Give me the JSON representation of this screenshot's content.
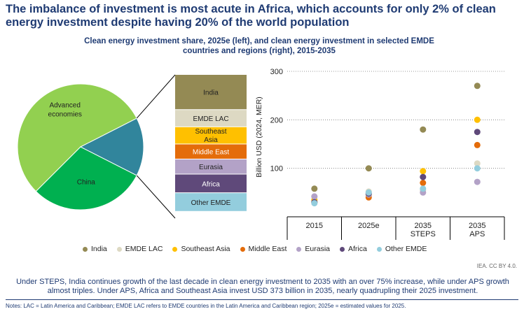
{
  "headline": "The imbalance of investment is most acute in Africa, which accounts for only 2% of clean energy investment despite having 20% of the world population",
  "subtitle": "Clean energy investment share, 2025e (left), and clean energy investment in selected EMDE countries and regions (right), 2015-2035",
  "credit": "IEA. CC BY 4.0.",
  "caption": "Under STEPS, India continues growth of the last decade in clean energy investment to 2035 with an over 75% increase, while under APS growth almost triples. Under APS, Africa and Southeast Asia invest USD 373 billion in 2035, nearly quadrupling their 2025 investment.",
  "notes": "Notes: LAC = Latin America and Caribbean; EMDE LAC refers to EMDE countries in the Latin America and Caribbean region; 2025e = estimated values for 2025.",
  "colors": {
    "advanced": "#92d050",
    "china": "#00b050",
    "emde": "#31859c",
    "India": "#948a54",
    "EMDE LAC": "#ddd9c3",
    "Southeast Asia": "#ffc000",
    "Middle East": "#e46c0a",
    "Eurasia": "#b3a2c7",
    "Africa": "#5f497a",
    "Other EMDE": "#93cddd"
  },
  "chart_data": [
    {
      "type": "pie",
      "slices": [
        {
          "label": "Advanced economies",
          "share": 0.55
        },
        {
          "label": "China",
          "share": 0.3
        },
        {
          "label": "",
          "share": 0.15
        }
      ]
    },
    {
      "type": "bar",
      "stacked": true,
      "segments": [
        {
          "label": "India",
          "share": 0.245
        },
        {
          "label": "EMDE LAC",
          "share": 0.12
        },
        {
          "label": "Southeast Asia",
          "share": 0.12
        },
        {
          "label": "Middle East",
          "share": 0.105
        },
        {
          "label": "Eurasia",
          "share": 0.105
        },
        {
          "label": "Africa",
          "share": 0.13
        },
        {
          "label": "Other EMDE",
          "share": 0.13
        }
      ]
    },
    {
      "type": "scatter",
      "ylabel": "Billion USD (2024, MER)",
      "categories": [
        "2015",
        "2025e",
        "2035\nSTEPS",
        "2035\nAPS"
      ],
      "yticks": [
        100,
        200,
        300
      ],
      "ylim": [
        0,
        300
      ],
      "series": [
        {
          "name": "India",
          "values": [
            58,
            100,
            180,
            270
          ]
        },
        {
          "name": "EMDE LAC",
          "values": [
            42,
            52,
            55,
            110
          ]
        },
        {
          "name": "Southeast Asia",
          "values": [
            35,
            45,
            94,
            200
          ]
        },
        {
          "name": "Middle East",
          "values": [
            30,
            40,
            70,
            148
          ]
        },
        {
          "name": "Eurasia",
          "values": [
            42,
            46,
            50,
            72
          ]
        },
        {
          "name": "Africa",
          "values": [
            30,
            48,
            82,
            175
          ]
        },
        {
          "name": "Other EMDE",
          "values": [
            28,
            50,
            58,
            100
          ]
        }
      ]
    }
  ]
}
